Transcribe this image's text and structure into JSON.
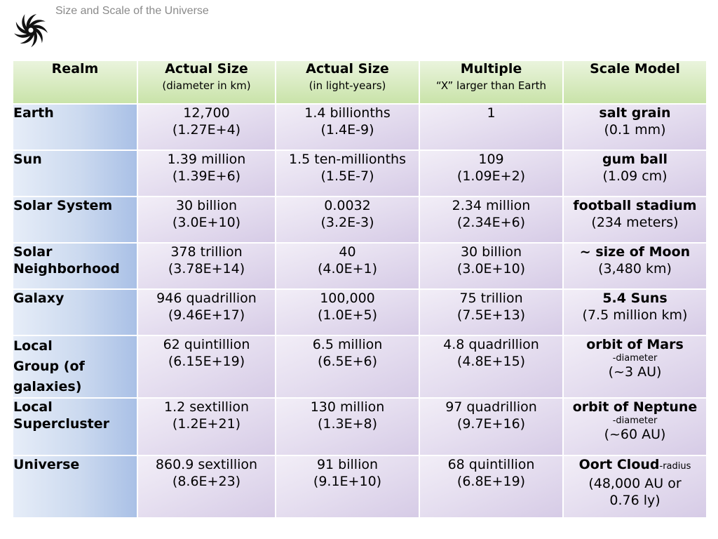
{
  "title": "Size and Scale of the Universe",
  "logo_icon": "spiral-galaxy-icon",
  "headers": {
    "realm": "Realm",
    "actual_km": {
      "main": "Actual Size",
      "sub": "(diameter in km)"
    },
    "actual_ly": {
      "main": "Actual Size",
      "sub": "(in light-years)"
    },
    "multiple": {
      "main": "Multiple",
      "sub": "“X” larger than Earth"
    },
    "scale": {
      "main": "Scale Model"
    }
  },
  "rows": [
    {
      "realm": "Earth",
      "km": [
        "12,700",
        "(1.27E+4)"
      ],
      "ly": [
        "1.4 billionths",
        "(1.4E-9)"
      ],
      "mult": [
        "1",
        ""
      ],
      "scale": {
        "bold": "salt grain",
        "small": "",
        "line2": "(0.1 mm)",
        "line3": ""
      }
    },
    {
      "realm": "Sun",
      "km": [
        "1.39 million",
        "(1.39E+6)"
      ],
      "ly": [
        "1.5 ten-millionths",
        "(1.5E-7)"
      ],
      "mult": [
        "109",
        "(1.09E+2)"
      ],
      "scale": {
        "bold": "gum ball",
        "small": "",
        "line2": "(1.09 cm)",
        "line3": ""
      }
    },
    {
      "realm": "Solar System",
      "km": [
        "30 billion",
        "(3.0E+10)"
      ],
      "ly": [
        "0.0032",
        "(3.2E-3)"
      ],
      "mult": [
        "2.34 million",
        "(2.34E+6)"
      ],
      "scale": {
        "bold": "football stadium",
        "small": "",
        "line2": "(234 meters)",
        "line3": ""
      }
    },
    {
      "realm": "Solar Neighborhood",
      "km": [
        "378 trillion",
        "(3.78E+14)"
      ],
      "ly": [
        "40",
        "(4.0E+1)"
      ],
      "mult": [
        "30 billion",
        "(3.0E+10)"
      ],
      "scale": {
        "bold": "~ size of Moon",
        "small": "",
        "line2": "(3,480 km)",
        "line3": ""
      }
    },
    {
      "realm": "Galaxy",
      "km": [
        "946 quadrillion",
        "(9.46E+17)"
      ],
      "ly": [
        "100,000",
        "(1.0E+5)"
      ],
      "mult": [
        "75 trillion",
        "(7.5E+13)"
      ],
      "scale": {
        "bold": "5.4 Suns",
        "small": "",
        "line2": "(7.5 million km)",
        "line3": ""
      }
    },
    {
      "realm": "Local Group (of galaxies)",
      "km": [
        "62 quintillion",
        "(6.15E+19)"
      ],
      "ly": [
        "6.5 million",
        "(6.5E+6)"
      ],
      "mult": [
        "4.8 quadrillion",
        "(4.8E+15)"
      ],
      "scale": {
        "bold": "orbit of Mars",
        "small": "-diameter",
        "line2": "(~3 AU)",
        "line3": ""
      }
    },
    {
      "realm": "Local Supercluster",
      "km": [
        "1.2 sextillion",
        "(1.2E+21)"
      ],
      "ly": [
        "130 million",
        "(1.3E+8)"
      ],
      "mult": [
        "97 quadrillion",
        "(9.7E+16)"
      ],
      "scale": {
        "bold": "orbit of Neptune",
        "small": "-diameter",
        "line2": "(~60 AU)",
        "line3": ""
      }
    },
    {
      "realm": "Universe",
      "km": [
        "860.9 sextillion",
        "(8.6E+23)"
      ],
      "ly": [
        "91 billion",
        "(9.1E+10)"
      ],
      "mult": [
        "68 quintillion",
        "(6.8E+19)"
      ],
      "scale": {
        "bold": "Oort Cloud",
        "small_inline": "-radius",
        "line2": "(48,000 AU or",
        "line3": "0.76 ly)"
      }
    }
  ]
}
